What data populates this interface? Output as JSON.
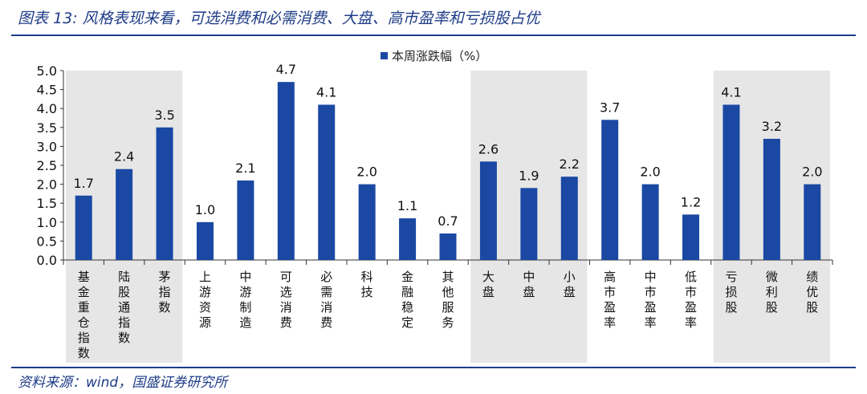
{
  "figure": {
    "title": "图表 13: 风格表现来看，可选消费和必需消费、大盘、高市盈率和亏损股占优",
    "source": "资料来源：wind，国盛证券研究所"
  },
  "chart_data": {
    "type": "bar",
    "categories": [
      "基金重仓指数",
      "陆股通指数",
      "茅指数",
      "上游资源",
      "中游制造",
      "可选消费",
      "必需消费",
      "科技",
      "金融稳定",
      "其他服务",
      "大盘",
      "中盘",
      "小盘",
      "高市盈率",
      "中市盈率",
      "低市盈率",
      "亏损股",
      "微利股",
      "绩优股"
    ],
    "series": [
      {
        "name": "本周涨跌幅（%）",
        "values": [
          1.7,
          2.4,
          3.5,
          1.0,
          2.1,
          4.7,
          4.1,
          2.0,
          1.1,
          0.7,
          2.6,
          1.9,
          2.2,
          3.7,
          2.0,
          1.2,
          4.1,
          3.2,
          2.0
        ]
      }
    ],
    "data_labels": [
      "1.7",
      "2.4",
      "3.5",
      "1.0",
      "2.1",
      "4.7",
      "4.1",
      "2.0",
      "1.1",
      "0.7",
      "2.6",
      "1.9",
      "2.2",
      "3.7",
      "2.0",
      "1.2",
      "4.1",
      "3.2",
      "2.0"
    ],
    "ylim": [
      0,
      5.0
    ],
    "yticks": [
      "0.0",
      "0.5",
      "1.0",
      "1.5",
      "2.0",
      "2.5",
      "3.0",
      "3.5",
      "4.0",
      "4.5",
      "5.0"
    ],
    "ytick_values": [
      0,
      0.5,
      1.0,
      1.5,
      2.0,
      2.5,
      3.0,
      3.5,
      4.0,
      4.5,
      5.0
    ],
    "legend_position": "top-center",
    "grid": false,
    "shaded_groups": [
      [
        0,
        2
      ],
      [
        10,
        12
      ],
      [
        16,
        18
      ]
    ],
    "colors": {
      "bar": "#1a48a3",
      "shade": "#e6e6e6",
      "brand": "#1f3c88"
    }
  }
}
